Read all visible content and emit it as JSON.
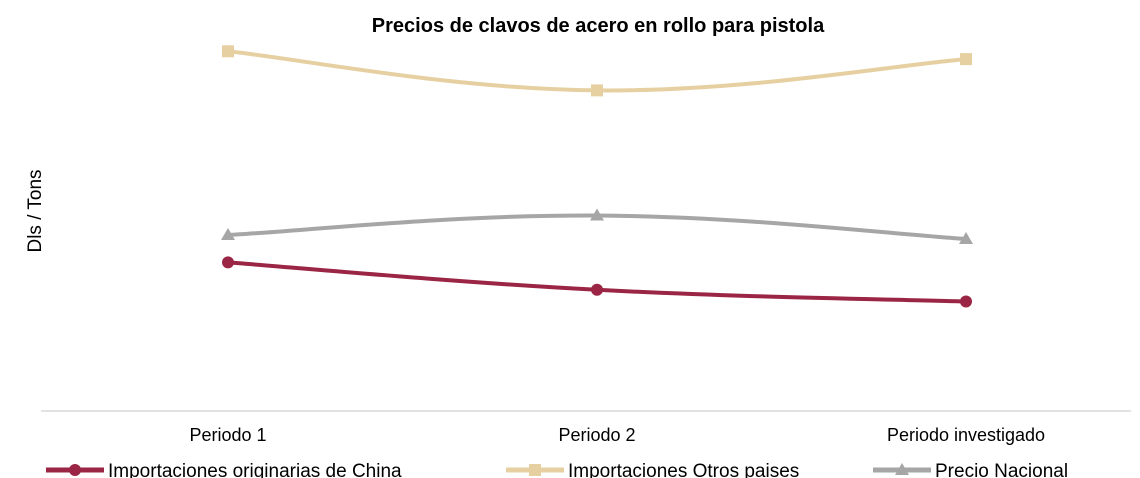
{
  "chart_data": {
    "type": "line",
    "title": "Precios de clavos de acero en rollo para pistola",
    "ylabel": "Dls / Tons",
    "xlabel": "",
    "categories": [
      "Periodo 1",
      "Periodo 2",
      "Periodo investigado"
    ],
    "ylim": [
      0,
      100
    ],
    "grid": false,
    "legend_position": "bottom",
    "series": [
      {
        "name": "Importaciones originarias de China",
        "values": [
          38,
          31,
          28
        ],
        "color": "#9b2545",
        "marker": "circle"
      },
      {
        "name": "Importaciones Otros paises",
        "values": [
          92,
          82,
          90
        ],
        "color": "#e6d0a2",
        "marker": "square"
      },
      {
        "name": "Precio Nacional",
        "values": [
          45,
          50,
          44
        ],
        "color": "#a6a6a6",
        "marker": "triangle"
      }
    ]
  }
}
